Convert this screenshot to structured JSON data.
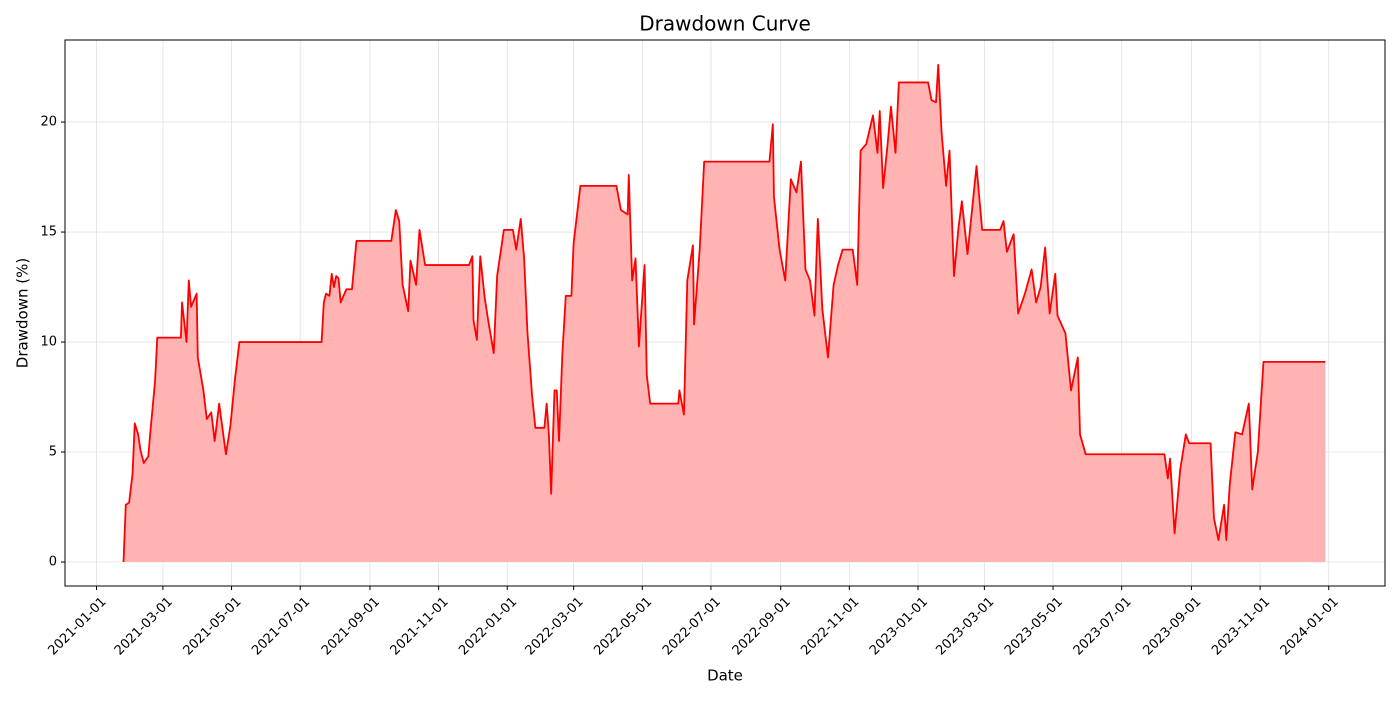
{
  "chart_data": {
    "type": "area",
    "title": "Drawdown Curve",
    "x_label": "Date",
    "y_label": "Drawdown (%)",
    "x": [
      "2021-01-25",
      "2021-01-27",
      "2021-01-30",
      "2021-02-02",
      "2021-02-04",
      "2021-02-07",
      "2021-02-09",
      "2021-02-12",
      "2021-02-16",
      "2021-02-18",
      "2021-02-22",
      "2021-02-24",
      "2021-03-17",
      "2021-03-18",
      "2021-03-22",
      "2021-03-24",
      "2021-03-26",
      "2021-03-31",
      "2021-04-01",
      "2021-04-06",
      "2021-04-09",
      "2021-04-13",
      "2021-04-16",
      "2021-04-20",
      "2021-04-26",
      "2021-04-30",
      "2021-05-04",
      "2021-05-08",
      "2021-07-20",
      "2021-07-22",
      "2021-07-24",
      "2021-07-27",
      "2021-07-29",
      "2021-07-31",
      "2021-08-02",
      "2021-08-04",
      "2021-08-06",
      "2021-08-11",
      "2021-08-16",
      "2021-08-20",
      "2021-09-20",
      "2021-09-24",
      "2021-09-27",
      "2021-09-30",
      "2021-10-05",
      "2021-10-07",
      "2021-10-12",
      "2021-10-15",
      "2021-10-20",
      "2021-11-28",
      "2021-12-01",
      "2021-12-02",
      "2021-12-05",
      "2021-12-08",
      "2021-12-12",
      "2021-12-15",
      "2021-12-20",
      "2021-12-23",
      "2021-12-29",
      "2022-01-06",
      "2022-01-09",
      "2022-01-13",
      "2022-01-16",
      "2022-01-19",
      "2022-01-23",
      "2022-01-26",
      "2022-02-03",
      "2022-02-05",
      "2022-02-07",
      "2022-02-09",
      "2022-02-12",
      "2022-02-14",
      "2022-02-16",
      "2022-02-19",
      "2022-02-22",
      "2022-02-27",
      "2022-03-01",
      "2022-03-07",
      "2022-04-08",
      "2022-04-12",
      "2022-04-18",
      "2022-04-19",
      "2022-04-22",
      "2022-04-25",
      "2022-04-28",
      "2022-05-03",
      "2022-05-05",
      "2022-05-08",
      "2022-06-02",
      "2022-06-03",
      "2022-06-07",
      "2022-06-10",
      "2022-06-15",
      "2022-06-16",
      "2022-06-21",
      "2022-06-25",
      "2022-08-22",
      "2022-08-25",
      "2022-08-26",
      "2022-08-31",
      "2022-09-05",
      "2022-09-10",
      "2022-09-15",
      "2022-09-19",
      "2022-09-23",
      "2022-09-27",
      "2022-10-01",
      "2022-10-04",
      "2022-10-08",
      "2022-10-13",
      "2022-10-18",
      "2022-10-22",
      "2022-10-26",
      "2022-11-04",
      "2022-11-08",
      "2022-11-11",
      "2022-11-16",
      "2022-11-22",
      "2022-11-26",
      "2022-11-28",
      "2022-12-01",
      "2022-12-05",
      "2022-12-08",
      "2022-12-12",
      "2022-12-15",
      "2023-01-10",
      "2023-01-13",
      "2023-01-17",
      "2023-01-19",
      "2023-01-22",
      "2023-01-26",
      "2023-01-29",
      "2023-02-02",
      "2023-02-06",
      "2023-02-09",
      "2023-02-14",
      "2023-02-22",
      "2023-02-27",
      "2023-03-15",
      "2023-03-18",
      "2023-03-21",
      "2023-03-27",
      "2023-03-31",
      "2023-04-06",
      "2023-04-12",
      "2023-04-16",
      "2023-04-20",
      "2023-04-24",
      "2023-04-28",
      "2023-05-03",
      "2023-05-05",
      "2023-05-12",
      "2023-05-17",
      "2023-05-23",
      "2023-05-25",
      "2023-05-30",
      "2023-08-08",
      "2023-08-11",
      "2023-08-13",
      "2023-08-17",
      "2023-08-22",
      "2023-08-27",
      "2023-08-30",
      "2023-09-18",
      "2023-09-21",
      "2023-09-25",
      "2023-09-30",
      "2023-10-02",
      "2023-10-05",
      "2023-10-10",
      "2023-10-16",
      "2023-10-22",
      "2023-10-25",
      "2023-10-30",
      "2023-11-04",
      "2023-12-29"
    ],
    "series": [
      {
        "name": "Drawdown",
        "color": "#ff0000",
        "fill": "#ffb3b3",
        "values": [
          0,
          2.6,
          2.7,
          4,
          6.3,
          5.8,
          5.1,
          4.5,
          4.8,
          6,
          8.2,
          10.2,
          10.2,
          11.8,
          10,
          12.8,
          11.6,
          12.2,
          9.3,
          7.8,
          6.5,
          6.8,
          5.5,
          7.2,
          4.9,
          6.2,
          8.3,
          10,
          10,
          11.8,
          12.2,
          12.1,
          13.1,
          12.5,
          13,
          12.9,
          11.8,
          12.4,
          12.4,
          14.6,
          14.6,
          16,
          15.5,
          12.6,
          11.4,
          13.7,
          12.6,
          15.1,
          13.5,
          13.5,
          13.9,
          11,
          10.1,
          13.9,
          12,
          11,
          9.5,
          13,
          15.1,
          15.1,
          14.2,
          15.6,
          13.8,
          10.4,
          7.6,
          6.1,
          6.1,
          7.2,
          5.8,
          3.1,
          7.8,
          7.8,
          5.5,
          9.5,
          12.1,
          12.1,
          14.5,
          17.1,
          17.1,
          16,
          15.8,
          17.6,
          12.8,
          13.8,
          9.8,
          13.5,
          8.5,
          7.2,
          7.2,
          7.8,
          6.7,
          12.8,
          14.4,
          10.8,
          14.2,
          18.2,
          18.2,
          19.9,
          16.6,
          14.2,
          12.8,
          17.4,
          16.8,
          18.2,
          13.3,
          12.8,
          11.2,
          15.6,
          11.5,
          9.3,
          12.6,
          13.5,
          14.2,
          14.2,
          12.6,
          18.7,
          19,
          20.3,
          18.6,
          20.5,
          17,
          19,
          20.7,
          18.6,
          21.8,
          21.8,
          21,
          20.9,
          22.6,
          19.5,
          17.1,
          18.7,
          13,
          15.2,
          16.4,
          14,
          18,
          15.1,
          15.1,
          15.5,
          14.1,
          14.9,
          11.3,
          12.2,
          13.3,
          11.8,
          12.5,
          14.3,
          11.3,
          13.1,
          11.2,
          10.4,
          7.8,
          9.3,
          5.8,
          4.9,
          4.9,
          3.8,
          4.7,
          1.3,
          4.2,
          5.8,
          5.4,
          5.4,
          2,
          1,
          2.6,
          1,
          3.5,
          5.9,
          5.8,
          7.2,
          3.3,
          5,
          9.1,
          9.1
        ]
      }
    ],
    "xlim": [
      "2020-12-04",
      "2024-02-20"
    ],
    "xticks": [
      "2021-01-01",
      "2021-03-01",
      "2021-05-01",
      "2021-07-01",
      "2021-09-01",
      "2021-11-01",
      "2022-01-01",
      "2022-03-01",
      "2022-05-01",
      "2022-07-01",
      "2022-09-01",
      "2022-11-01",
      "2023-01-01",
      "2023-03-01",
      "2023-05-01",
      "2023-07-01",
      "2023-09-01",
      "2023-11-01",
      "2024-01-01"
    ],
    "ylim": [
      -1.09,
      23.73
    ],
    "yticks": [
      0,
      5,
      10,
      15,
      20
    ],
    "grid": true
  }
}
